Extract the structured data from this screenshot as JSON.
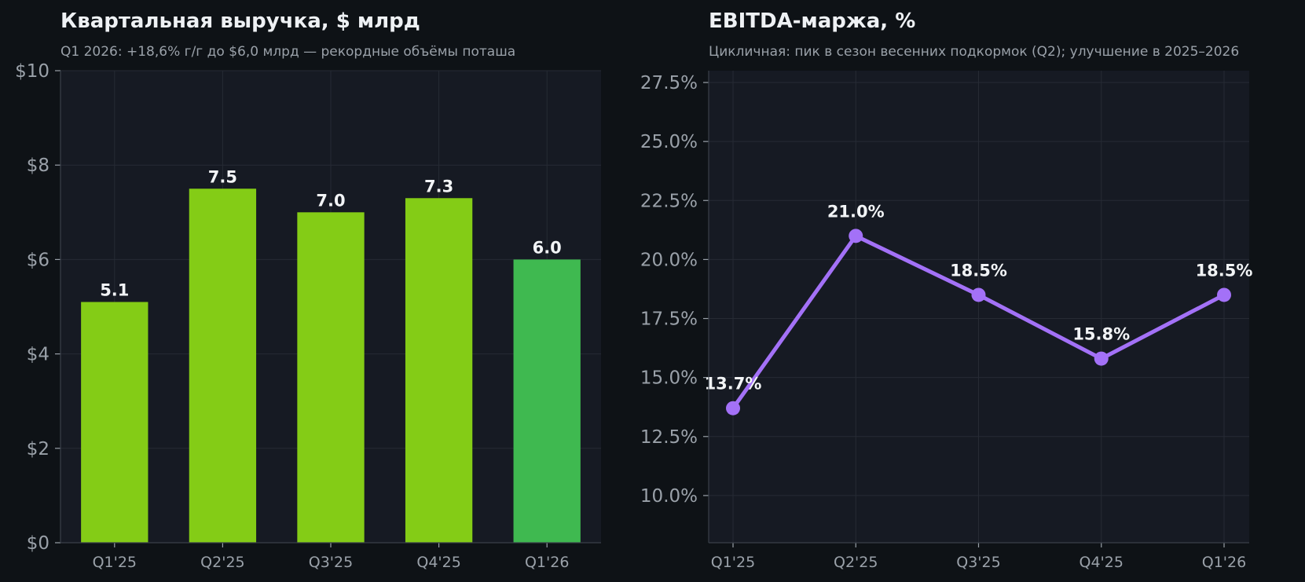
{
  "colors": {
    "background": "#0e1216",
    "plot_bg": "#161a23",
    "bar": "#84cc16",
    "bar_highlight": "#3fb950",
    "line": "#a371f7"
  },
  "chart_data": [
    {
      "type": "bar",
      "title": "Квартальная выручка, $ млрд",
      "subtitle": "Q1 2026: +18,6% г/г до $6,0 млрд — рекордные объёмы поташа",
      "categories": [
        "Q1'25",
        "Q2'25",
        "Q3'25",
        "Q4'25",
        "Q1'26"
      ],
      "values": [
        5.1,
        7.5,
        7.0,
        7.3,
        6.0
      ],
      "value_labels": [
        "5.1",
        "7.5",
        "7.0",
        "7.3",
        "6.0"
      ],
      "highlight_index": 4,
      "ylim": [
        0,
        10
      ],
      "yticks": [
        0,
        2,
        4,
        6,
        8,
        10
      ],
      "ytick_labels": [
        "$0",
        "$2",
        "$4",
        "$6",
        "$8",
        "$10"
      ],
      "grid": true
    },
    {
      "type": "line",
      "title": "EBITDA-маржа, %",
      "subtitle": "Цикличная: пик в сезон весенних подкормок (Q2); улучшение в 2025–2026",
      "categories": [
        "Q1'25",
        "Q2'25",
        "Q3'25",
        "Q4'25",
        "Q1'26"
      ],
      "values": [
        13.7,
        21.0,
        18.5,
        15.8,
        18.5
      ],
      "value_labels": [
        "13.7%",
        "21.0%",
        "18.5%",
        "15.8%",
        "18.5%"
      ],
      "ylim": [
        8,
        28
      ],
      "yticks": [
        10,
        12.5,
        15,
        17.5,
        20,
        22.5,
        25,
        27.5
      ],
      "ytick_labels": [
        "10.0%",
        "12.5%",
        "15.0%",
        "17.5%",
        "20.0%",
        "22.5%",
        "25.0%",
        "27.5%"
      ],
      "grid": true
    }
  ]
}
